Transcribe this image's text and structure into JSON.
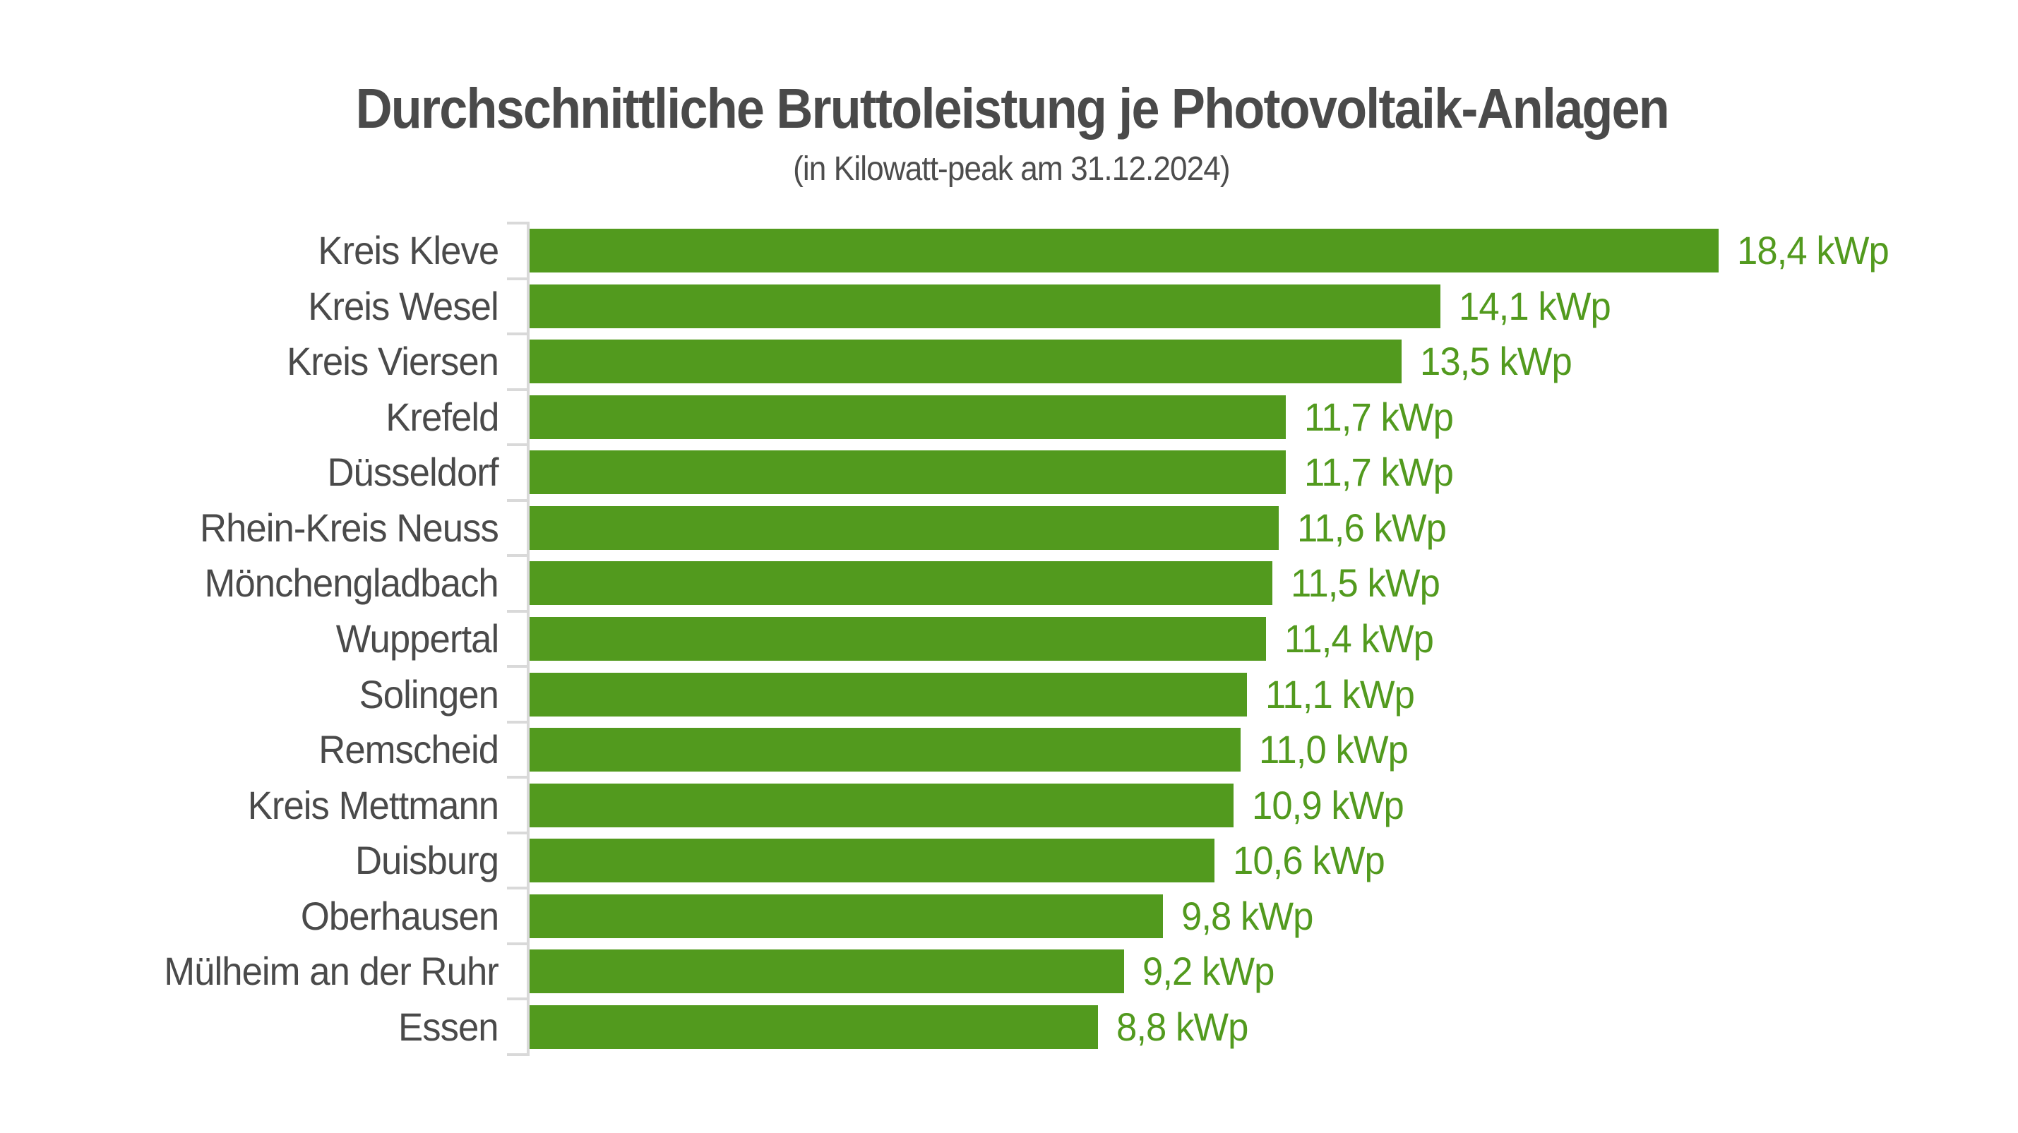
{
  "title": "Durchschnittliche Bruttoleistung je Photovoltaik-Anlagen",
  "subtitle": "(in Kilowatt-peak am 31.12.2024)",
  "colors": {
    "bar_green": "#529a1e",
    "value_text_green": "#529a1e",
    "title_gray": "#4a4a4a",
    "tick_gray": "#d9d9d9"
  },
  "chart_data": {
    "type": "bar",
    "orientation": "horizontal",
    "title": "Durchschnittliche Bruttoleistung je Photovoltaik-Anlagen",
    "subtitle": "(in Kilowatt-peak am 31.12.2024)",
    "unit": "kWp",
    "xlabel": "",
    "ylabel": "",
    "xlim": [
      0,
      20
    ],
    "grid": false,
    "legend": null,
    "value_label_position": "right-of-bar",
    "categories": [
      "Kreis Kleve",
      "Kreis Wesel",
      "Kreis Viersen",
      "Krefeld",
      "Düsseldorf",
      "Rhein-Kreis Neuss",
      "Mönchengladbach",
      "Wuppertal",
      "Solingen",
      "Remscheid",
      "Kreis Mettmann",
      "Duisburg",
      "Oberhausen",
      "Mülheim an der Ruhr",
      "Essen"
    ],
    "values": [
      18.4,
      14.1,
      13.5,
      11.7,
      11.7,
      11.6,
      11.5,
      11.4,
      11.1,
      11.0,
      10.9,
      10.6,
      9.8,
      9.2,
      8.8
    ],
    "value_labels": [
      "18,4 kWp",
      "14,1 kWp",
      "13,5 kWp",
      "11,7 kWp",
      "11,7 kWp",
      "11,6 kWp",
      "11,5 kWp",
      "11,4 kWp",
      "11,1 kWp",
      "11,0 kWp",
      "10,9 kWp",
      "10,6 kWp",
      "9,8 kWp",
      "9,2 kWp",
      "8,8 kWp"
    ]
  }
}
